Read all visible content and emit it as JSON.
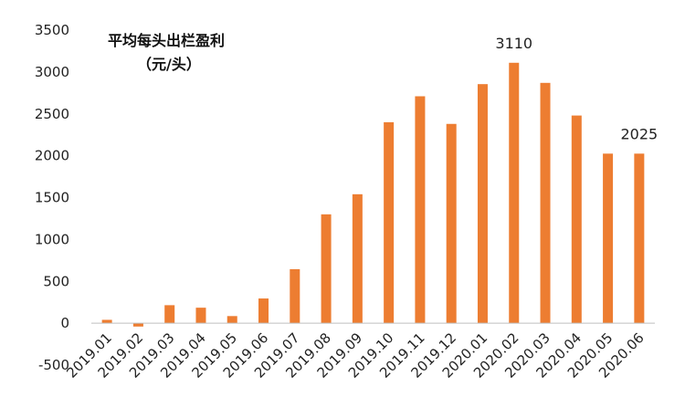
{
  "chart_data": {
    "type": "bar",
    "title": "平均每头出栏盈利",
    "subtitle": "（元/头）",
    "categories": [
      "2019.01",
      "2019.02",
      "2019.03",
      "2019.04",
      "2019.05",
      "2019.06",
      "2019.07",
      "2019.08",
      "2019.09",
      "2019.10",
      "2019.11",
      "2019.12",
      "2020.01",
      "2020.02",
      "2020.03",
      "2020.04",
      "2020.05",
      "2020.06"
    ],
    "values": [
      40,
      -40,
      215,
      185,
      85,
      295,
      645,
      1300,
      1540,
      2400,
      2710,
      2380,
      2855,
      3110,
      2870,
      2480,
      2025,
      2025
    ],
    "ylim": [
      -500,
      3500
    ],
    "yticks": [
      -500,
      0,
      500,
      1000,
      1500,
      2000,
      2500,
      3000,
      3500
    ],
    "annotations": [
      {
        "category": "2020.02",
        "text": "3110"
      },
      {
        "category": "2020.06",
        "text": "2025"
      }
    ],
    "bar_color": "#ED7D31",
    "grid": false,
    "legend": "none"
  }
}
